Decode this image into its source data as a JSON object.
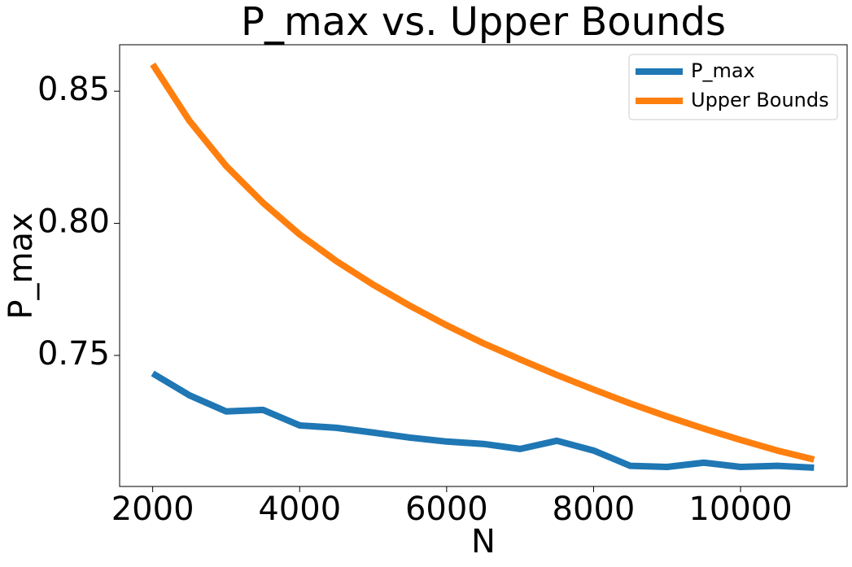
{
  "chart_data": {
    "type": "line",
    "title": "P_max vs. Upper Bounds",
    "xlabel": "N",
    "ylabel": "P_max",
    "x": [
      2000,
      2500,
      3000,
      3500,
      4000,
      4500,
      5000,
      5500,
      6000,
      6500,
      7000,
      7500,
      8000,
      8500,
      9000,
      9500,
      10000,
      10500,
      11000
    ],
    "series": [
      {
        "name": "P_max",
        "color": "#1f77b4",
        "values": [
          0.7432,
          0.7349,
          0.7288,
          0.7294,
          0.7235,
          0.7226,
          0.7208,
          0.7189,
          0.7174,
          0.7165,
          0.7146,
          0.7177,
          0.714,
          0.7082,
          0.7078,
          0.7094,
          0.7078,
          0.7082,
          0.7075
        ]
      },
      {
        "name": "Upper Bounds",
        "color": "#ff7f0e",
        "values": [
          0.8602,
          0.8388,
          0.8217,
          0.8078,
          0.7958,
          0.7857,
          0.7768,
          0.7688,
          0.7614,
          0.7546,
          0.7485,
          0.7426,
          0.7371,
          0.7318,
          0.7269,
          0.7223,
          0.718,
          0.714,
          0.7106
        ]
      }
    ],
    "xlim": [
      1550,
      11450
    ],
    "ylim": [
      0.7004,
      0.8676
    ],
    "xticks": [
      2000,
      4000,
      6000,
      8000,
      10000
    ],
    "yticks": [
      0.75,
      {
        "value": 0.8,
        "label": "0.80"
      },
      0.85
    ],
    "grid": false,
    "legend": "upper right"
  }
}
